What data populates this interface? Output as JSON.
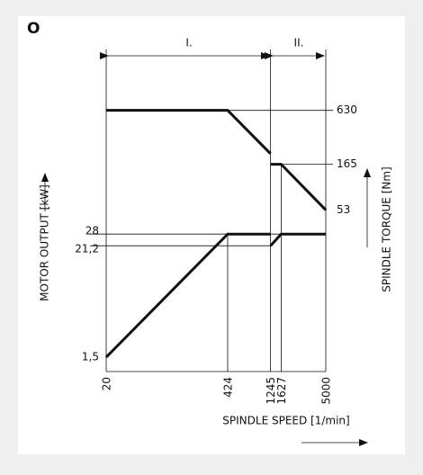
{
  "chart_data": {
    "type": "line",
    "label": "O",
    "sections": [
      "I.",
      "II."
    ],
    "x_label": "SPINDLE SPEED [1/min]",
    "y_label": "MOTOR OUTPUT  [kW]",
    "y2_label": "SPINDLE TORQUE [Nm]",
    "x": [
      20,
      424,
      1245,
      1245,
      1245,
      1627,
      5000
    ],
    "series": [
      {
        "name": "Motor output",
        "color": "#111111",
        "values": [
          1.5,
          28,
          28,
          null,
          21.2,
          28,
          28
        ]
      },
      {
        "name": "Spindle torque",
        "color": "#111111",
        "axis": "y2",
        "values": [
          630,
          630,
          215,
          null,
          165,
          165,
          53
        ]
      }
    ],
    "xlim": [
      20,
      5000
    ],
    "xticks": [
      20,
      424,
      1245,
      1627,
      5000
    ],
    "xscale": "log",
    "ylim": [
      1,
      1000
    ],
    "yticks": [
      {
        "value": 1.5,
        "label": "1,5"
      },
      {
        "value": 21.2,
        "label": "21,2"
      },
      28
    ],
    "yscale": "log",
    "y2lim": [
      10,
      1000
    ],
    "y2ticks": [
      630,
      165,
      53
    ],
    "y2scale": "log"
  }
}
